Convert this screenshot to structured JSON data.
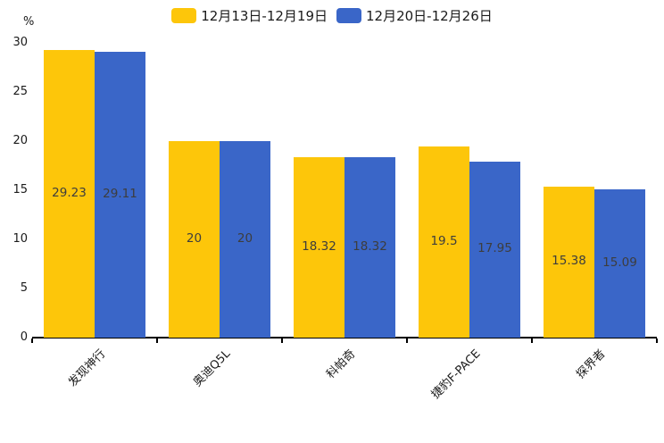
{
  "chart_data": {
    "type": "bar",
    "title": "",
    "ylabel": "%",
    "xlabel": "",
    "ylim": [
      0,
      30
    ],
    "yticks": [
      0,
      5,
      10,
      15,
      20,
      25,
      30
    ],
    "grid": false,
    "legend_position": "top",
    "categories": [
      "发现神行",
      "奥迪Q5L",
      "科帕奇",
      "捷豹F-PACE",
      "探界者"
    ],
    "series": [
      {
        "name": "12月13日-12月19日",
        "color": "#FDC60A",
        "values": [
          29.23,
          20,
          18.32,
          19.5,
          15.38
        ]
      },
      {
        "name": "12月20日-12月26日",
        "color": "#3A66C8",
        "values": [
          29.11,
          20,
          18.32,
          17.95,
          15.09
        ]
      }
    ],
    "value_label_color": "#3d3d3d",
    "axis_color": "#000000",
    "text_color": "#1a1a1a"
  }
}
